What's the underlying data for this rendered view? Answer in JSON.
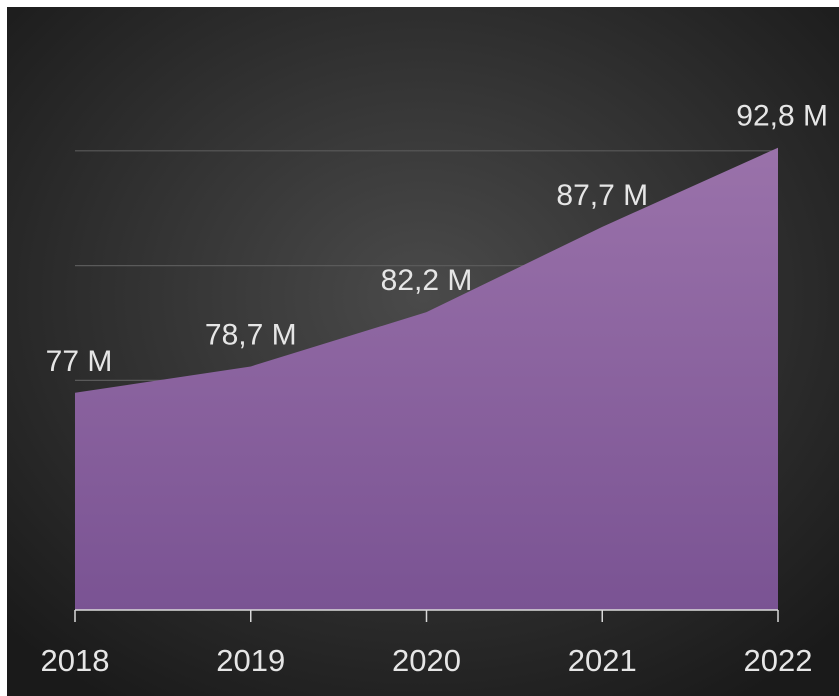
{
  "chart_data": {
    "type": "area",
    "title": "",
    "xlabel": "",
    "ylabel": "",
    "categories": [
      "2018",
      "2019",
      "2020",
      "2021",
      "2022"
    ],
    "series": [
      {
        "values": [
          77.0,
          78.7,
          82.2,
          87.7,
          92.8
        ],
        "labels": [
          "77 M",
          "78,7 M",
          "82,2 M",
          "87,7 M",
          "92,8 M"
        ]
      }
    ],
    "ylim": [
      63,
      100
    ],
    "yticks": [
      63,
      70.4,
      77.8,
      85.2,
      92.6
    ],
    "grid": true,
    "legend": "none",
    "colors": {
      "area_top": "#9a72aa",
      "area_bottom": "#7a5393",
      "background_center": "#4a4a4a",
      "background_edge": "#1a1a1a",
      "gridline": "#5a5a5a",
      "axis": "#d9d9d9",
      "text": "#e6e6e6"
    }
  }
}
